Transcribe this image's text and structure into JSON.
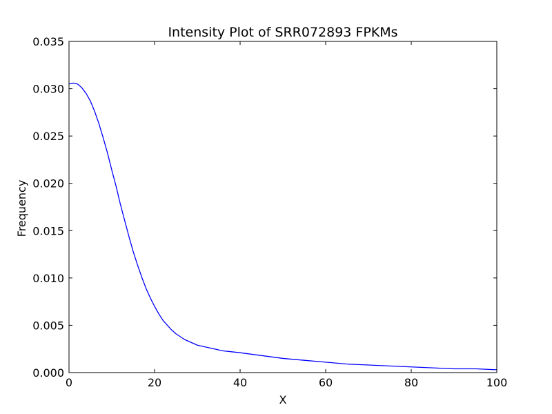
{
  "chart_data": {
    "type": "line",
    "title": "Intensity Plot of SRR072893 FPKMs",
    "xlabel": "X",
    "ylabel": "Frequency",
    "xlim": [
      0,
      100
    ],
    "ylim": [
      0,
      0.035
    ],
    "xticks": [
      0,
      20,
      40,
      60,
      80,
      100
    ],
    "xtick_labels": [
      "0",
      "20",
      "40",
      "60",
      "80",
      "100"
    ],
    "yticks": [
      0,
      0.005,
      0.01,
      0.015,
      0.02,
      0.025,
      0.03,
      0.035
    ],
    "ytick_labels": [
      "0.000",
      "0.005",
      "0.010",
      "0.015",
      "0.020",
      "0.025",
      "0.030",
      "0.035"
    ],
    "grid": false,
    "line_color": "#0000ff",
    "series": [
      {
        "x": [
          0,
          1,
          2,
          3,
          4,
          5,
          6,
          7,
          8,
          9,
          10,
          11,
          12,
          13,
          14,
          15,
          16,
          17,
          18,
          19,
          20,
          21,
          22,
          23,
          24,
          25,
          26,
          27,
          28,
          29,
          30,
          32,
          34,
          36,
          38,
          40,
          45,
          50,
          55,
          60,
          65,
          70,
          75,
          80,
          85,
          90,
          95,
          100
        ],
        "values": [
          0.0305,
          0.0306,
          0.0305,
          0.0301,
          0.0295,
          0.0287,
          0.0276,
          0.0263,
          0.0248,
          0.0232,
          0.0214,
          0.0197,
          0.0178,
          0.0161,
          0.0144,
          0.0128,
          0.0114,
          0.0101,
          0.0089,
          0.0079,
          0.007,
          0.0062,
          0.0055,
          0.005,
          0.0045,
          0.0041,
          0.0038,
          0.0035,
          0.0033,
          0.0031,
          0.0029,
          0.0027,
          0.0025,
          0.0023,
          0.0022,
          0.0021,
          0.0018,
          0.0015,
          0.0013,
          0.0011,
          0.0009,
          0.0008,
          0.0007,
          0.0006,
          0.0005,
          0.0004,
          0.0004,
          0.0003
        ]
      }
    ]
  }
}
